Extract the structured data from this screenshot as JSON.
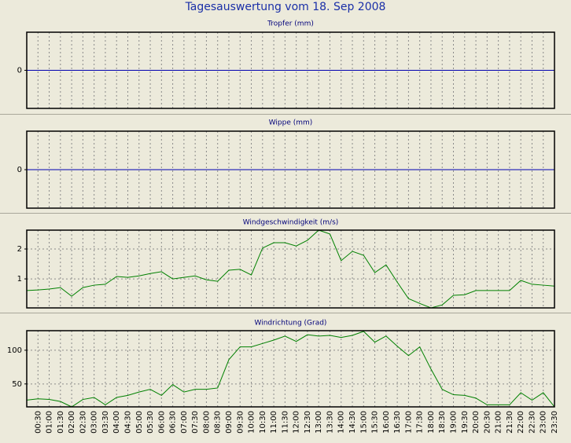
{
  "title": "Tagesauswertung vom 18. Sep 2008",
  "chart_data": [
    {
      "type": "line",
      "title": "Tropfer (mm)",
      "ylim": [
        -1,
        1
      ],
      "yticks": [
        0
      ],
      "grid": true,
      "series": [
        {
          "color": "#0000b0",
          "values": [
            0,
            0,
            0,
            0,
            0,
            0,
            0,
            0,
            0,
            0,
            0,
            0,
            0,
            0,
            0,
            0,
            0,
            0,
            0,
            0,
            0,
            0,
            0,
            0,
            0,
            0,
            0,
            0,
            0,
            0,
            0,
            0,
            0,
            0,
            0,
            0,
            0,
            0,
            0,
            0,
            0,
            0,
            0,
            0,
            0,
            0,
            0,
            0
          ]
        }
      ]
    },
    {
      "type": "line",
      "title": "Wippe (mm)",
      "ylim": [
        -1,
        1
      ],
      "yticks": [
        0
      ],
      "grid": true,
      "series": [
        {
          "color": "#0000b0",
          "values": [
            0,
            0,
            0,
            0,
            0,
            0,
            0,
            0,
            0,
            0,
            0,
            0,
            0,
            0,
            0,
            0,
            0,
            0,
            0,
            0,
            0,
            0,
            0,
            0,
            0,
            0,
            0,
            0,
            0,
            0,
            0,
            0,
            0,
            0,
            0,
            0,
            0,
            0,
            0,
            0,
            0,
            0,
            0,
            0,
            0,
            0,
            0,
            0
          ]
        }
      ]
    },
    {
      "type": "line",
      "title": "Windgeschwindigkeit (m/s)",
      "ylim": [
        0.03,
        2.63
      ],
      "yticks": [
        1,
        2
      ],
      "grid": true,
      "series": [
        {
          "color": "#008000",
          "values": [
            0.61,
            0.63,
            0.66,
            0.71,
            0.42,
            0.71,
            0.79,
            0.82,
            1.08,
            1.05,
            1.1,
            1.18,
            1.24,
            1.0,
            1.05,
            1.1,
            0.97,
            0.92,
            1.29,
            1.32,
            1.13,
            2.03,
            2.21,
            2.21,
            2.1,
            2.29,
            2.63,
            2.5,
            1.61,
            1.92,
            1.79,
            1.21,
            1.47,
            0.89,
            0.34,
            0.18,
            0.03,
            0.13,
            0.45,
            0.47,
            0.61,
            0.61,
            0.61,
            0.61,
            0.95,
            0.82,
            0.79,
            0.76
          ]
        }
      ]
    },
    {
      "type": "line",
      "title": "Windrichtung (Grad)",
      "ylim": [
        16,
        129
      ],
      "yticks": [
        50,
        100
      ],
      "grid": true,
      "categories": [
        null,
        "00:30",
        "01:00",
        "01:30",
        "02:00",
        "02:30",
        "03:00",
        "03:30",
        "04:00",
        "04:30",
        "05:00",
        "05:30",
        "06:00",
        "06:30",
        "07:00",
        "07:30",
        "08:00",
        "08:30",
        "09:00",
        "09:30",
        "10:00",
        "10:30",
        "11:00",
        "11:30",
        "12:00",
        "12:30",
        "13:00",
        "13:30",
        "14:00",
        "14:30",
        "15:00",
        "15:30",
        "16:00",
        "16:30",
        "17:00",
        "17:30",
        "18:00",
        "18:30",
        "19:00",
        "19:30",
        "20:00",
        "20:30",
        "21:00",
        "21:30",
        "22:00",
        "22:30",
        "23:00",
        "23:30"
      ],
      "series": [
        {
          "color": "#008000",
          "values": [
            26,
            28,
            27,
            24,
            16,
            27,
            30,
            19,
            30,
            33,
            38,
            42,
            33,
            49,
            38,
            42,
            42,
            44,
            86,
            105,
            105,
            110,
            115,
            121,
            113,
            123,
            121,
            122,
            119,
            122,
            128,
            112,
            121,
            106,
            92,
            105,
            72,
            42,
            34,
            33,
            29,
            19,
            19,
            19,
            37,
            26,
            37,
            16
          ]
        }
      ]
    }
  ]
}
